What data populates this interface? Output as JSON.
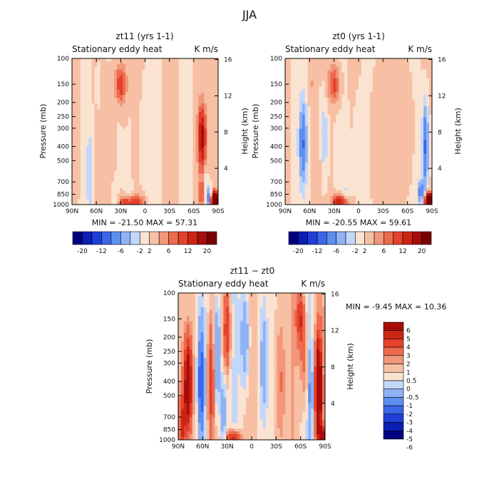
{
  "figure_title": "JJA",
  "colors": {
    "scale_a": [
      "#00007f",
      "#0a1fb5",
      "#1f3fd8",
      "#3a66e8",
      "#5f8ef0",
      "#8fb2f5",
      "#c2d7fa",
      "#fbe3d2",
      "#f7c0a4",
      "#f2977a",
      "#ec6a4e",
      "#e5412b",
      "#cc2515",
      "#a80c0a",
      "#7a0000"
    ],
    "scale_b": [
      "#00007f",
      "#0a1fb5",
      "#1f3fd8",
      "#3a66e8",
      "#5f8ef0",
      "#8fb2f5",
      "#c2d7fa",
      "#fbe3d2",
      "#f7c0a4",
      "#f2977a",
      "#ec6a4e",
      "#e5412b",
      "#cc2515",
      "#a80c0a"
    ]
  },
  "chart_data": [
    {
      "type": "heatmap",
      "title": "zt11  (yrs 1-1)",
      "label_left": "Stationary eddy heat",
      "label_right": "K m/s",
      "xlabel": "",
      "ylabel": "Pressure (mb)",
      "ylabel_right": "Height (km)",
      "x_ticks": [
        "90N",
        "60N",
        "30N",
        "0",
        "30S",
        "60S",
        "90S"
      ],
      "y_ticks": [
        "100",
        "150",
        "200",
        "250",
        "300",
        "400",
        "500",
        "700",
        "850",
        "1000"
      ],
      "y_ticks_right": [
        "16",
        "12",
        "8",
        "4"
      ],
      "stats": "MIN = -21.50   MAX =  57.31",
      "colorbar_labels": [
        "-20",
        "-12",
        "-6",
        "-2",
        "2",
        "6",
        "12",
        "20"
      ],
      "min": -21.5,
      "max": 57.31,
      "features": [
        {
          "lat": 30,
          "p": 150,
          "value": 8,
          "w": 7,
          "h": 0.13
        },
        {
          "lat": 21,
          "p": 970,
          "value": 10,
          "w": 10,
          "h": 0.05
        },
        {
          "lat": 8,
          "p": 960,
          "value": 5,
          "w": 9,
          "h": 0.05
        },
        {
          "lat": -70,
          "p": 350,
          "value": 14,
          "w": 5,
          "h": 0.22
        },
        {
          "lat": -70,
          "p": 850,
          "value": 6,
          "w": 5,
          "h": 0.1
        },
        {
          "lat": -86,
          "p": 960,
          "value": 40,
          "w": 4,
          "h": 0.06
        },
        {
          "lat": -78,
          "p": 900,
          "value": -8,
          "w": 4,
          "h": 0.08
        },
        {
          "lat": -74,
          "p": 660,
          "value": -3,
          "w": 3,
          "h": 0.08
        },
        {
          "lat": 68,
          "p": 600,
          "value": -3,
          "w": 5,
          "h": 0.35
        },
        {
          "lat": 38,
          "p": 850,
          "value": -2,
          "w": 4,
          "h": 0.1
        },
        {
          "lat": 20,
          "p": 920,
          "value": -4,
          "w": 5,
          "h": 0.06
        },
        {
          "lat": 58,
          "p": 150,
          "value": -2,
          "w": 3,
          "h": 0.15
        },
        {
          "lat": -5,
          "p": 400,
          "value": -1.5,
          "w": 10,
          "h": 0.5
        },
        {
          "lat": 42,
          "p": 500,
          "value": 1.5,
          "w": 5,
          "h": 0.5
        },
        {
          "lat": -25,
          "p": 400,
          "value": 1.2,
          "w": 6,
          "h": 0.5
        },
        {
          "lat": 85,
          "p": 300,
          "value": 1.5,
          "w": 5,
          "h": 0.5
        }
      ]
    },
    {
      "type": "heatmap",
      "title": "zt0  (yrs 1-1)",
      "label_left": "Stationary eddy heat",
      "label_right": "K m/s",
      "xlabel": "",
      "ylabel": "Pressure (mb)",
      "ylabel_right": "Height (km)",
      "x_ticks": [
        "90N",
        "60N",
        "30N",
        "0",
        "30S",
        "60S",
        "90S"
      ],
      "y_ticks": [
        "100",
        "150",
        "200",
        "250",
        "300",
        "400",
        "500",
        "700",
        "850",
        "1000"
      ],
      "y_ticks_right": [
        "16",
        "12",
        "8",
        "4"
      ],
      "stats": "MIN = -20.55   MAX =  59.61",
      "colorbar_labels": [
        "-20",
        "-12",
        "-6",
        "-2",
        "2",
        "6",
        "12",
        "20"
      ],
      "min": -20.55,
      "max": 59.61,
      "features": [
        {
          "lat": 68,
          "p": 380,
          "value": -9,
          "w": 5,
          "h": 0.3
        },
        {
          "lat": 30,
          "p": 150,
          "value": 7,
          "w": 7,
          "h": 0.13
        },
        {
          "lat": 42,
          "p": 350,
          "value": -4,
          "w": 4,
          "h": 0.25
        },
        {
          "lat": 22,
          "p": 965,
          "value": 12,
          "w": 10,
          "h": 0.05
        },
        {
          "lat": -82,
          "p": 400,
          "value": -10,
          "w": 4,
          "h": 0.3
        },
        {
          "lat": -86,
          "p": 955,
          "value": 40,
          "w": 4,
          "h": 0.05
        },
        {
          "lat": -76,
          "p": 820,
          "value": -8,
          "w": 4,
          "h": 0.08
        },
        {
          "lat": 15,
          "p": 900,
          "value": -3,
          "w": 6,
          "h": 0.1
        },
        {
          "lat": 58,
          "p": 150,
          "value": 2,
          "w": 5,
          "h": 0.12
        },
        {
          "lat": -20,
          "p": 400,
          "value": 1.2,
          "w": 8,
          "h": 0.5
        },
        {
          "lat": 0,
          "p": 500,
          "value": -1.5,
          "w": 8,
          "h": 0.5
        },
        {
          "lat": 50,
          "p": 700,
          "value": 1.5,
          "w": 4,
          "h": 0.3
        },
        {
          "lat": -62,
          "p": 300,
          "value": 2,
          "w": 5,
          "h": 0.3
        }
      ]
    },
    {
      "type": "heatmap",
      "title": "zt11 − zt0",
      "label_left": "Stationary eddy heat",
      "label_right": "K m/s",
      "xlabel": "",
      "ylabel": "Pressure (mb)",
      "ylabel_right": "Height (km)",
      "x_ticks": [
        "90N",
        "60N",
        "30N",
        "0",
        "30S",
        "60S",
        "90S"
      ],
      "y_ticks": [
        "100",
        "150",
        "200",
        "250",
        "300",
        "400",
        "500",
        "700",
        "850",
        "1000"
      ],
      "y_ticks_right": [
        "16",
        "12",
        "8",
        "4"
      ],
      "stats": "MIN =   -9.45   MAX =  10.36",
      "colorbar_labels": [
        "6",
        "5",
        "4",
        "3",
        "2",
        "1",
        "0.5",
        "0",
        "-0.5",
        "-1",
        "-2",
        "-3",
        "-4",
        "-5",
        "-6"
      ],
      "min": -9.45,
      "max": 10.36,
      "features": [
        {
          "lat": 78,
          "p": 420,
          "value": 6,
          "w": 5,
          "h": 0.3
        },
        {
          "lat": 62,
          "p": 400,
          "value": -4,
          "w": 4,
          "h": 0.4
        },
        {
          "lat": 50,
          "p": 400,
          "value": 3,
          "w": 4,
          "h": 0.4
        },
        {
          "lat": 42,
          "p": 250,
          "value": -2.5,
          "w": 4,
          "h": 0.4
        },
        {
          "lat": 30,
          "p": 180,
          "value": 3,
          "w": 4,
          "h": 0.25
        },
        {
          "lat": 35,
          "p": 650,
          "value": -2,
          "w": 4,
          "h": 0.3
        },
        {
          "lat": 22,
          "p": 975,
          "value": 4,
          "w": 8,
          "h": 0.05
        },
        {
          "lat": 8,
          "p": 200,
          "value": -2,
          "w": 5,
          "h": 0.35
        },
        {
          "lat": -15,
          "p": 300,
          "value": -1.5,
          "w": 5,
          "h": 0.4
        },
        {
          "lat": -35,
          "p": 400,
          "value": 1.3,
          "w": 6,
          "h": 0.5
        },
        {
          "lat": -60,
          "p": 150,
          "value": 3,
          "w": 5,
          "h": 0.2
        },
        {
          "lat": -65,
          "p": 300,
          "value": 1.5,
          "w": 5,
          "h": 0.3
        },
        {
          "lat": -72,
          "p": 450,
          "value": -2,
          "w": 3,
          "h": 0.3
        },
        {
          "lat": -82,
          "p": 450,
          "value": 7,
          "w": 4,
          "h": 0.35
        },
        {
          "lat": -86,
          "p": 960,
          "value": 8,
          "w": 3,
          "h": 0.06
        },
        {
          "lat": 85,
          "p": 800,
          "value": 3,
          "w": 4,
          "h": 0.2
        }
      ]
    }
  ]
}
